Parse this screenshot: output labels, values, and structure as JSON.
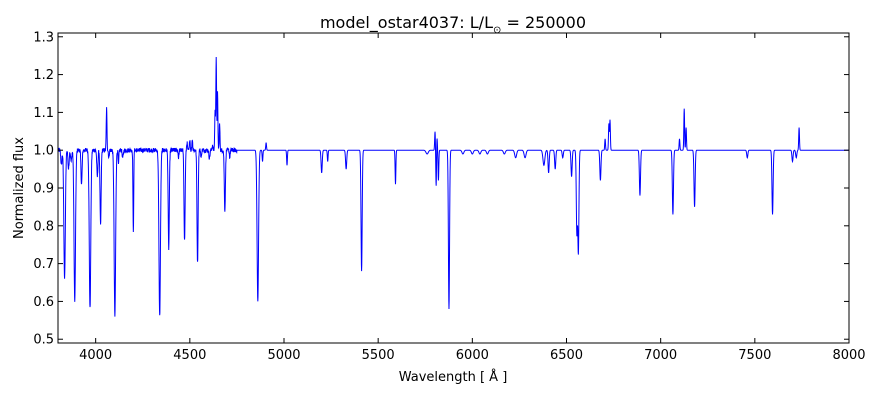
{
  "chart_data": {
    "type": "line",
    "title": "model_ostar4037: L/L",
    "title_sub": "⊙",
    "title_suffix": " = 250000",
    "xlabel": "Wavelength [ Å ]",
    "ylabel": "Normalized flux",
    "xlim": [
      3800,
      8000
    ],
    "ylim": [
      0.49,
      1.31
    ],
    "x_ticks": [
      4000,
      4500,
      5000,
      5500,
      6000,
      6500,
      7000,
      7500,
      8000
    ],
    "y_ticks": [
      0.5,
      0.6,
      0.7,
      0.8,
      0.9,
      1.0,
      1.1,
      1.2,
      1.3
    ],
    "grid": false,
    "series": [
      {
        "color": "#0000ff",
        "continuum": 1.0,
        "features": [
          [
            3818,
            0.96,
            3
          ],
          [
            3835,
            0.66,
            4
          ],
          [
            3856,
            0.95,
            3
          ],
          [
            3870,
            0.97,
            3
          ],
          [
            3889,
            0.6,
            4
          ],
          [
            3925,
            0.91,
            3
          ],
          [
            3970,
            0.58,
            4
          ],
          [
            4009,
            0.93,
            3
          ],
          [
            4026,
            0.8,
            3
          ],
          [
            4058,
            1.11,
            2
          ],
          [
            4070,
            0.98,
            2
          ],
          [
            4102,
            0.56,
            4
          ],
          [
            4121,
            0.96,
            2
          ],
          [
            4144,
            0.98,
            3
          ],
          [
            4200,
            0.78,
            2
          ],
          [
            4340,
            0.56,
            4
          ],
          [
            4388,
            0.74,
            3
          ],
          [
            4440,
            0.98,
            2
          ],
          [
            4472,
            0.76,
            3
          ],
          [
            4485,
            1.02,
            2
          ],
          [
            4500,
            1.03,
            2
          ],
          [
            4513,
            1.03,
            2
          ],
          [
            4541,
            0.7,
            3
          ],
          [
            4560,
            0.98,
            2
          ],
          [
            4604,
            0.98,
            3
          ],
          [
            4620,
            1.01,
            3
          ],
          [
            4634,
            1.1,
            2
          ],
          [
            4640,
            1.24,
            2
          ],
          [
            4647,
            1.15,
            2
          ],
          [
            4658,
            1.07,
            2
          ],
          [
            4686,
            0.84,
            3
          ],
          [
            4712,
            0.98,
            2
          ],
          [
            4861,
            0.6,
            4
          ],
          [
            4886,
            0.97,
            2
          ],
          [
            4905,
            1.02,
            2
          ],
          [
            5016,
            0.96,
            2
          ],
          [
            5200,
            0.94,
            3
          ],
          [
            5232,
            0.97,
            2
          ],
          [
            5330,
            0.95,
            3
          ],
          [
            5412,
            0.68,
            3
          ],
          [
            5592,
            0.91,
            2
          ],
          [
            5760,
            0.99,
            6
          ],
          [
            5802,
            1.05,
            2
          ],
          [
            5808,
            0.9,
            2
          ],
          [
            5812,
            1.04,
            2
          ],
          [
            5820,
            0.92,
            2
          ],
          [
            5876,
            0.58,
            3
          ],
          [
            5950,
            0.99,
            5
          ],
          [
            6000,
            0.99,
            5
          ],
          [
            6040,
            0.99,
            5
          ],
          [
            6080,
            0.99,
            5
          ],
          [
            6170,
            0.99,
            5
          ],
          [
            6230,
            0.98,
            5
          ],
          [
            6280,
            0.98,
            5
          ],
          [
            6380,
            0.96,
            5
          ],
          [
            6405,
            0.94,
            3
          ],
          [
            6440,
            0.95,
            3
          ],
          [
            6480,
            0.98,
            3
          ],
          [
            6527,
            0.93,
            3
          ],
          [
            6555,
            0.78,
            3
          ],
          [
            6563,
            0.73,
            3
          ],
          [
            6680,
            0.92,
            3
          ],
          [
            6705,
            1.03,
            2
          ],
          [
            6725,
            1.07,
            2
          ],
          [
            6731,
            1.08,
            2
          ],
          [
            6890,
            0.88,
            3
          ],
          [
            7065,
            0.83,
            3
          ],
          [
            7100,
            1.03,
            2
          ],
          [
            7125,
            1.11,
            2
          ],
          [
            7135,
            1.06,
            2
          ],
          [
            7180,
            0.85,
            3
          ],
          [
            7460,
            0.98,
            3
          ],
          [
            7594,
            0.83,
            3
          ],
          [
            7700,
            0.97,
            3
          ],
          [
            7720,
            0.98,
            3
          ],
          [
            7735,
            1.06,
            2
          ]
        ]
      }
    ]
  }
}
